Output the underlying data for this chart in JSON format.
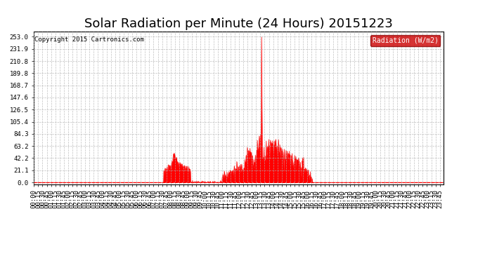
{
  "title": "Solar Radiation per Minute (24 Hours) 20151223",
  "copyright_text": "Copyright 2015 Cartronics.com",
  "legend_label": "Radiation (W/m2)",
  "y_ticks": [
    0.0,
    21.1,
    42.2,
    63.2,
    84.3,
    105.4,
    126.5,
    147.6,
    168.7,
    189.8,
    210.8,
    231.9,
    253.0
  ],
  "ylim": [
    -3,
    262
  ],
  "background_color": "#ffffff",
  "plot_bg_color": "#ffffff",
  "grid_color": "#b0b0b0",
  "line_color": "#ff0000",
  "fill_color": "#ff0000",
  "dashed_line_color": "#ff0000",
  "legend_bg": "#cc0000",
  "legend_fg": "#ffffff",
  "title_fontsize": 13,
  "tick_fontsize": 6.5,
  "total_minutes": 1440
}
